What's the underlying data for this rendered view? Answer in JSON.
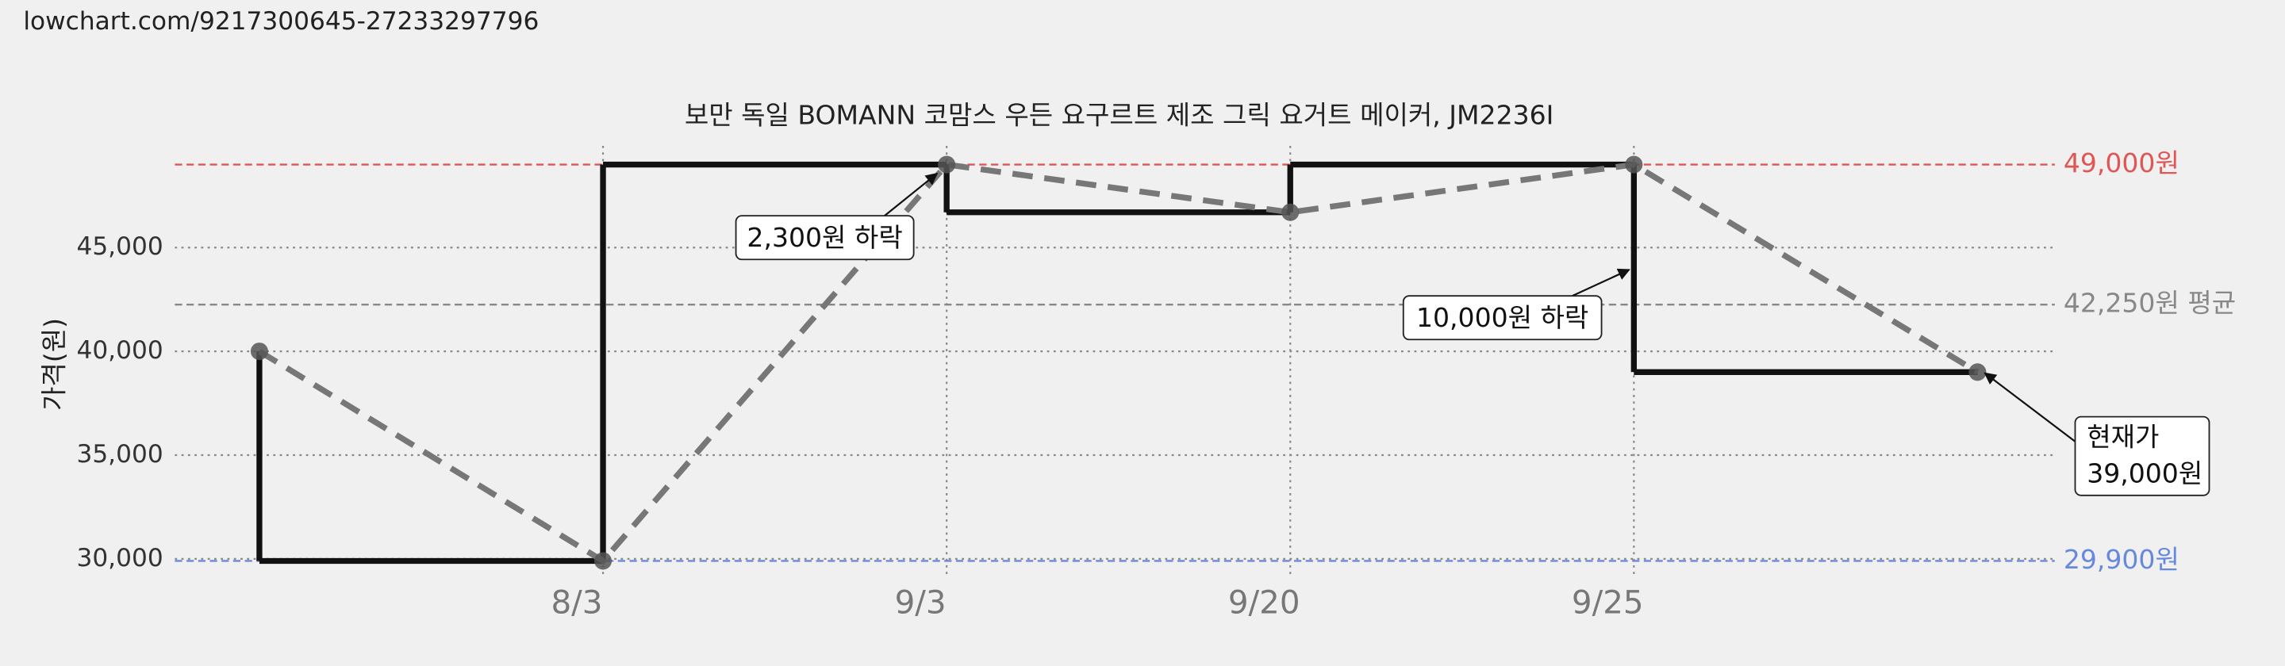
{
  "url": "lowchart.com/9217300645-27233297796",
  "chart_data": {
    "type": "line",
    "title": "보만 독일 BOMANN 코맘스 우든 요구르트 제조 그릭 요거트 메이커, JM2236I",
    "y_label": "가격(원)",
    "categories": [
      null,
      "8/3",
      "9/3",
      "9/20",
      "9/25",
      null
    ],
    "series": [
      {
        "color": "#111111",
        "values": [
          40000,
          29900,
          49000,
          46700,
          49000,
          39000
        ]
      }
    ],
    "trend_color": "#777777",
    "ylim": [
      29200,
      49900
    ],
    "yticks": [
      {
        "value": 30000,
        "label": "30,000"
      },
      {
        "value": 35000,
        "label": "35,000"
      },
      {
        "value": 40000,
        "label": "40,000"
      },
      {
        "value": 45000,
        "label": "45,000"
      }
    ],
    "grid": true,
    "reference_lines": [
      {
        "value": 49000,
        "label": "49,000원",
        "color": "#e05555"
      },
      {
        "value": 42250,
        "label": "42,250원 평균",
        "color": "#888888"
      },
      {
        "value": 29900,
        "label": "29,900원",
        "color": "#6688dd"
      }
    ],
    "annotations": [
      {
        "text": "2,300원 하락",
        "point": 2
      },
      {
        "text": "10,000원 하락",
        "point": 4
      },
      {
        "text": "현재가",
        "text2": "39,000원",
        "point": 5
      }
    ]
  }
}
